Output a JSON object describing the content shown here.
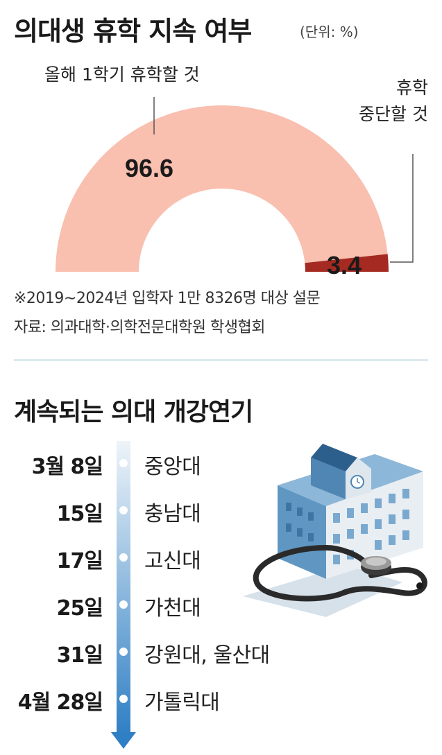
{
  "header": {
    "title": "의대생 휴학 지속 여부",
    "unit": "(단위: %)"
  },
  "chart_data": {
    "type": "pie",
    "categories": [
      "올해 1학기 휴학할 것",
      "휴학 중단할 것"
    ],
    "values": [
      96.6,
      3.4
    ],
    "value_labels": [
      "96.6",
      "3.4"
    ],
    "title": "의대생 휴학 지속 여부",
    "unit": "(단위: %)",
    "colors": [
      "#f9bfaf",
      "#a52a22"
    ]
  },
  "labels": {
    "continue": "올해 1학기 휴학할 것",
    "stop_line1": "휴학",
    "stop_line2": "중단할 것"
  },
  "footnote": "※2019∼2024년 입학자 1만 8326명 대상 설문",
  "source": "자료: 의과대학·의학전문대학원 학생협회",
  "schedule": {
    "title": "계속되는 의대 개강연기",
    "items": [
      {
        "date": "3월 8일",
        "university": "중앙대"
      },
      {
        "date": "15일",
        "university": "충남대"
      },
      {
        "date": "17일",
        "university": "고신대"
      },
      {
        "date": "25일",
        "university": "가천대"
      },
      {
        "date": "31일",
        "university": "강원대, 울산대"
      },
      {
        "date": "4월 28일",
        "university": "가톨릭대"
      }
    ]
  },
  "colors": {
    "continue": "#f9bfaf",
    "stop": "#a52a22",
    "timeline_top": "#eef4f9",
    "timeline_bottom": "#2f7fc4"
  },
  "illustration": {
    "icons": [
      "school-building-icon",
      "stethoscope-icon"
    ]
  }
}
